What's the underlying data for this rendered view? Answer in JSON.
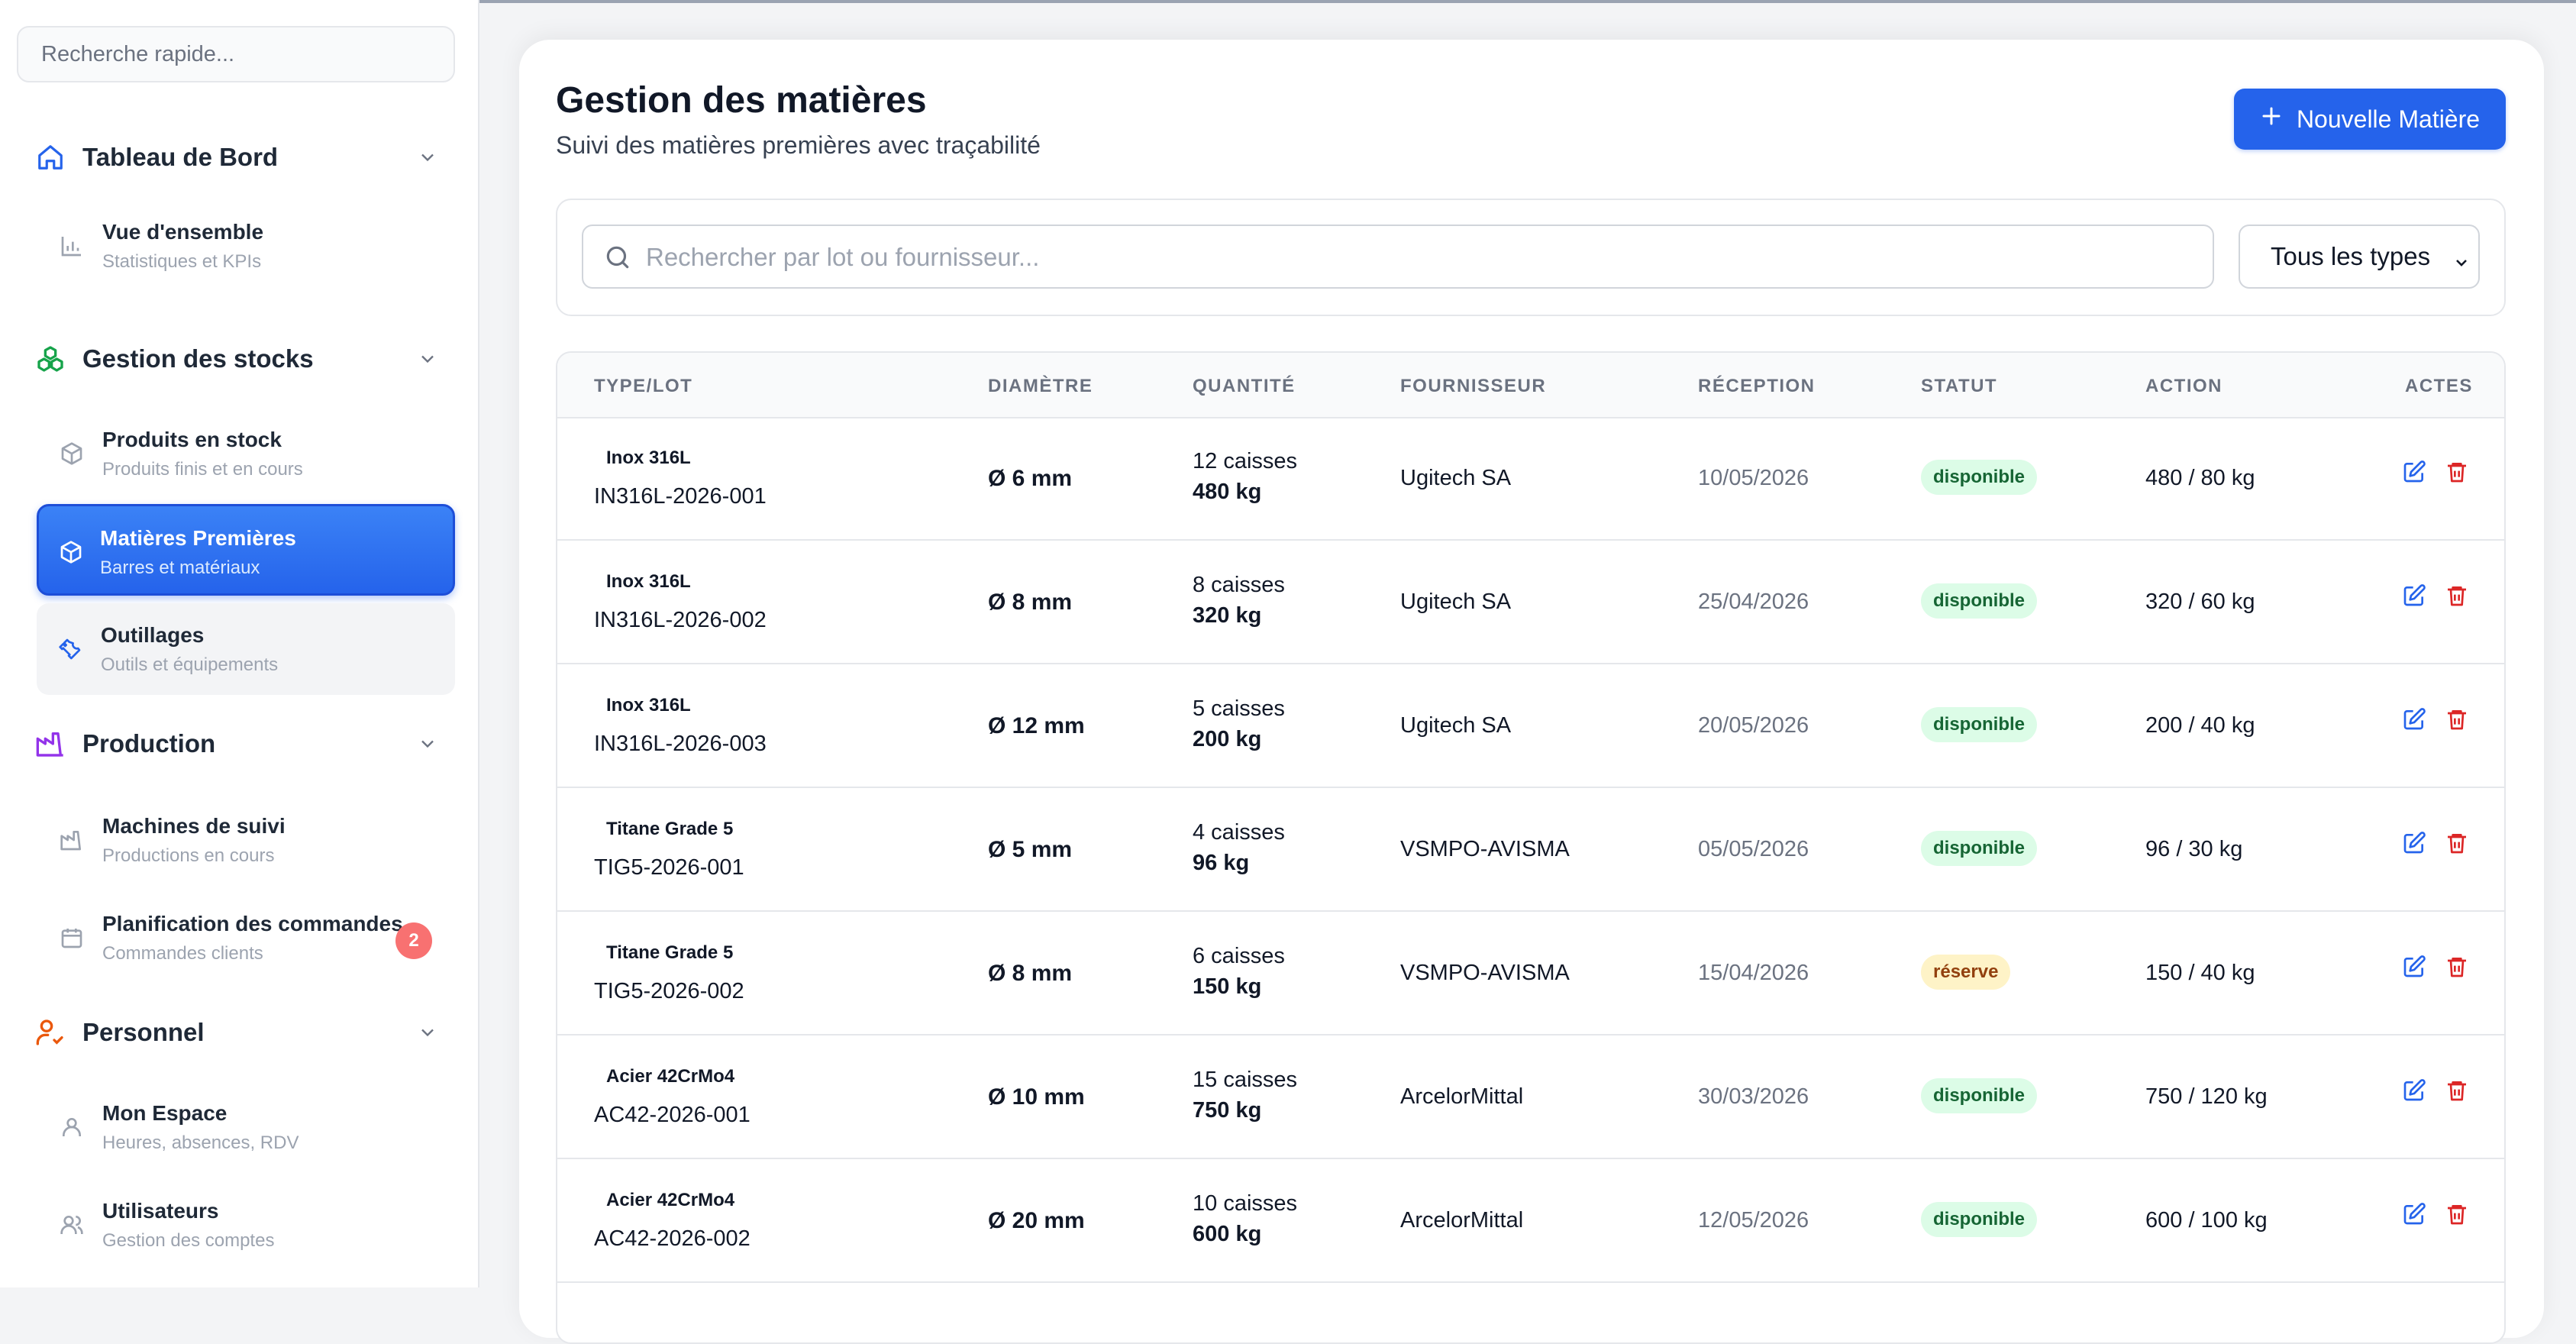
{
  "sidebar": {
    "search_placeholder": "Recherche rapide...",
    "sections": {
      "dashboard": {
        "title": "Tableau de Bord"
      },
      "stocks": {
        "title": "Gestion des stocks"
      },
      "production": {
        "title": "Production"
      },
      "personnel": {
        "title": "Personnel"
      }
    },
    "items": {
      "overview": {
        "title": "Vue d'ensemble",
        "subtitle": "Statistiques et KPIs"
      },
      "products": {
        "title": "Produits en stock",
        "subtitle": "Produits finis et en cours"
      },
      "materials": {
        "title": "Matières Premières",
        "subtitle": "Barres et matériaux"
      },
      "tools": {
        "title": "Outillages",
        "subtitle": "Outils et équipements"
      },
      "machines": {
        "title": "Machines de suivi",
        "subtitle": "Productions en cours"
      },
      "planning": {
        "title": "Planification des commandes",
        "subtitle": "Commandes clients",
        "badge": "2"
      },
      "my_space": {
        "title": "Mon Espace",
        "subtitle": "Heures, absences, RDV"
      },
      "users": {
        "title": "Utilisateurs",
        "subtitle": "Gestion des comptes"
      }
    }
  },
  "header": {
    "title": "Gestion des matières",
    "subtitle": "Suivi des matières premières avec traçabilité",
    "new_button": "Nouvelle Matière"
  },
  "filters": {
    "search_placeholder": "Rechercher par lot ou fournisseur...",
    "type_select": "Tous les types"
  },
  "table": {
    "columns": {
      "type_lot": "TYPE/LOT",
      "diameter": "DIAMÈTRE",
      "quantity": "QUANTITÉ",
      "supplier": "FOURNISSEUR",
      "reception": "RÉCEPTION",
      "status": "STATUT",
      "action": "ACTION",
      "acts": "ACTES"
    },
    "rows": [
      {
        "type": "Inox 316L",
        "lot": "IN316L-2026-001",
        "diameter": "Ø 6 mm",
        "cases": "12 caisses",
        "weight": "480 kg",
        "supplier": "Ugitech SA",
        "reception": "10/05/2026",
        "status": "disponible",
        "action": "480 / 80 kg"
      },
      {
        "type": "Inox 316L",
        "lot": "IN316L-2026-002",
        "diameter": "Ø 8 mm",
        "cases": "8 caisses",
        "weight": "320 kg",
        "supplier": "Ugitech SA",
        "reception": "25/04/2026",
        "status": "disponible",
        "action": "320 / 60 kg"
      },
      {
        "type": "Inox 316L",
        "lot": "IN316L-2026-003",
        "diameter": "Ø 12 mm",
        "cases": "5 caisses",
        "weight": "200 kg",
        "supplier": "Ugitech SA",
        "reception": "20/05/2026",
        "status": "disponible",
        "action": "200 / 40 kg"
      },
      {
        "type": "Titane Grade 5",
        "lot": "TIG5-2026-001",
        "diameter": "Ø 5 mm",
        "cases": "4 caisses",
        "weight": "96 kg",
        "supplier": "VSMPO-AVISMA",
        "reception": "05/05/2026",
        "status": "disponible",
        "action": "96 / 30 kg"
      },
      {
        "type": "Titane Grade 5",
        "lot": "TIG5-2026-002",
        "diameter": "Ø 8 mm",
        "cases": "6 caisses",
        "weight": "150 kg",
        "supplier": "VSMPO-AVISMA",
        "reception": "15/04/2026",
        "status": "réserve",
        "action": "150 / 40 kg"
      },
      {
        "type": "Acier 42CrMo4",
        "lot": "AC42-2026-001",
        "diameter": "Ø 10 mm",
        "cases": "15 caisses",
        "weight": "750 kg",
        "supplier": "ArcelorMittal",
        "reception": "30/03/2026",
        "status": "disponible",
        "action": "750 / 120 kg"
      },
      {
        "type": "Acier 42CrMo4",
        "lot": "AC42-2026-002",
        "diameter": "Ø 20 mm",
        "cases": "10 caisses",
        "weight": "600 kg",
        "supplier": "ArcelorMittal",
        "reception": "12/05/2026",
        "status": "disponible",
        "action": "600 / 100 kg"
      }
    ]
  },
  "colors": {
    "accent": "#2563eb",
    "status_available_bg": "#dcfce7",
    "status_reserved_bg": "#fef3c7",
    "delete": "#dc2626",
    "badge": "#f87171"
  }
}
